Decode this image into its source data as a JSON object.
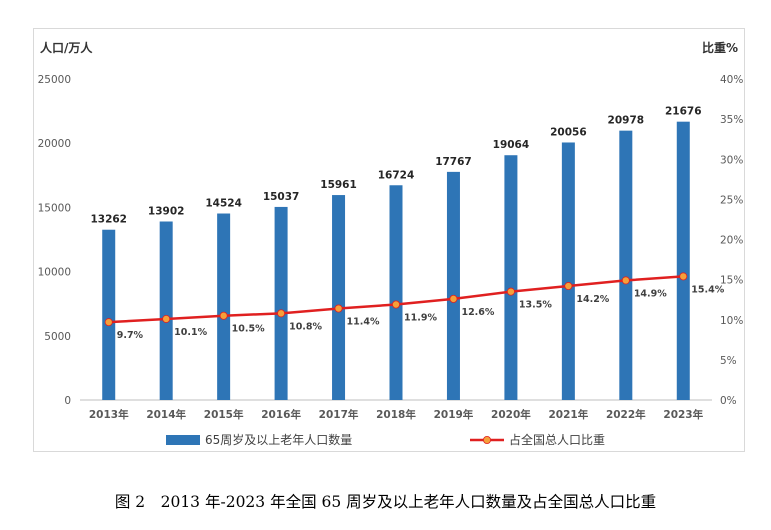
{
  "chart_data": {
    "type": "bar",
    "categories": [
      "2013年",
      "2014年",
      "2015年",
      "2016年",
      "2017年",
      "2018年",
      "2019年",
      "2020年",
      "2021年",
      "2022年",
      "2023年"
    ],
    "series": [
      {
        "name": "65周岁及以上老年人口数量",
        "type": "bar",
        "axis": "left",
        "color": "#2e75b6",
        "values": [
          13262,
          13902,
          14524,
          15037,
          15961,
          16724,
          17767,
          19064,
          20056,
          20978,
          21676
        ],
        "labels": [
          "13262",
          "13902",
          "14524",
          "15037",
          "15961",
          "16724",
          "17767",
          "19064",
          "20056",
          "20978",
          "21676"
        ]
      },
      {
        "name": "占全国总人口比重",
        "type": "line",
        "axis": "right",
        "color": "#e02020",
        "marker_color": "#f5a03a",
        "values": [
          9.7,
          10.1,
          10.5,
          10.8,
          11.4,
          11.9,
          12.6,
          13.5,
          14.2,
          14.9,
          15.4
        ],
        "labels": [
          "9.7%",
          "10.1%",
          "10.5%",
          "10.8%",
          "11.4%",
          "11.9%",
          "12.6%",
          "13.5%",
          "14.2%",
          "14.9%",
          "15.4%"
        ]
      }
    ],
    "left_axis": {
      "title": "人口/万人",
      "range": [
        0,
        25000
      ],
      "ticks": [
        "0",
        "5000",
        "10000",
        "15000",
        "20000",
        "25000"
      ]
    },
    "right_axis": {
      "title": "比重%",
      "range": [
        0,
        40
      ],
      "ticks": [
        "0%",
        "5%",
        "10%",
        "15%",
        "20%",
        "25%",
        "30%",
        "35%",
        "40%"
      ]
    },
    "grid": false,
    "legend_position": "bottom"
  },
  "caption": "图 2　2013 年-2023 年全国 65 周岁及以上老年人口数量及占全国总人口比重"
}
